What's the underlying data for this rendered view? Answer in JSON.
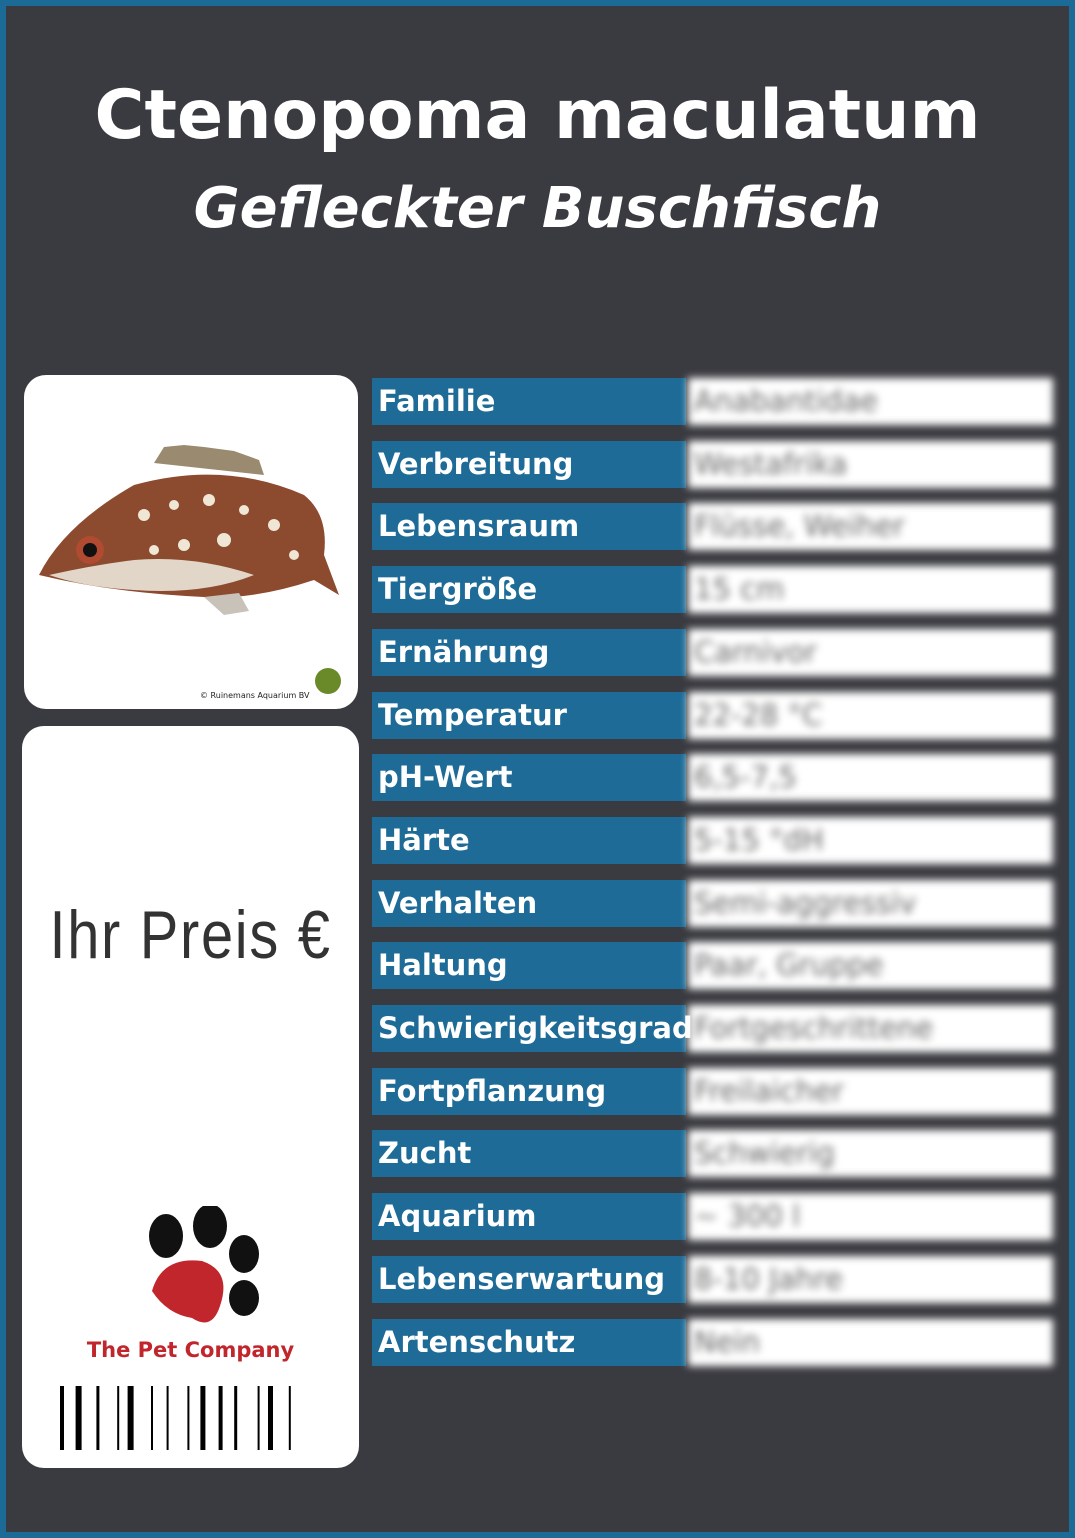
{
  "header": {
    "title": "Ctenopoma maculatum",
    "subtitle": "Gefleckter Buschfisch"
  },
  "image": {
    "credit": "© Ruinemans Aquarium BV"
  },
  "price": {
    "label": "Ihr Preis €"
  },
  "logo": {
    "name": "The Pet Company"
  },
  "table": {
    "rows": [
      {
        "label": "Familie",
        "value": "Anabantidae"
      },
      {
        "label": "Verbreitung",
        "value": "Westafrika"
      },
      {
        "label": "Lebensraum",
        "value": "Flüsse, Weiher"
      },
      {
        "label": "Tiergröße",
        "value": "15 cm"
      },
      {
        "label": "Ernährung",
        "value": "Carnivor"
      },
      {
        "label": "Temperatur",
        "value": "22-28 °C"
      },
      {
        "label": "pH-Wert",
        "value": "6,5-7,5"
      },
      {
        "label": "Härte",
        "value": "5-15 °dH"
      },
      {
        "label": "Verhalten",
        "value": "Semi-aggressiv"
      },
      {
        "label": "Haltung",
        "value": "Paar, Gruppe"
      },
      {
        "label": "Schwierigkeitsgrad",
        "value": "Fortgeschrittene"
      },
      {
        "label": "Fortpflanzung",
        "value": "Freilaicher"
      },
      {
        "label": "Zucht",
        "value": "Schwierig"
      },
      {
        "label": "Aquarium",
        "value": "~ 300 l"
      },
      {
        "label": "Lebenserwartung",
        "value": "8-10 Jahre"
      },
      {
        "label": "Artenschutz",
        "value": "Nein"
      }
    ]
  }
}
